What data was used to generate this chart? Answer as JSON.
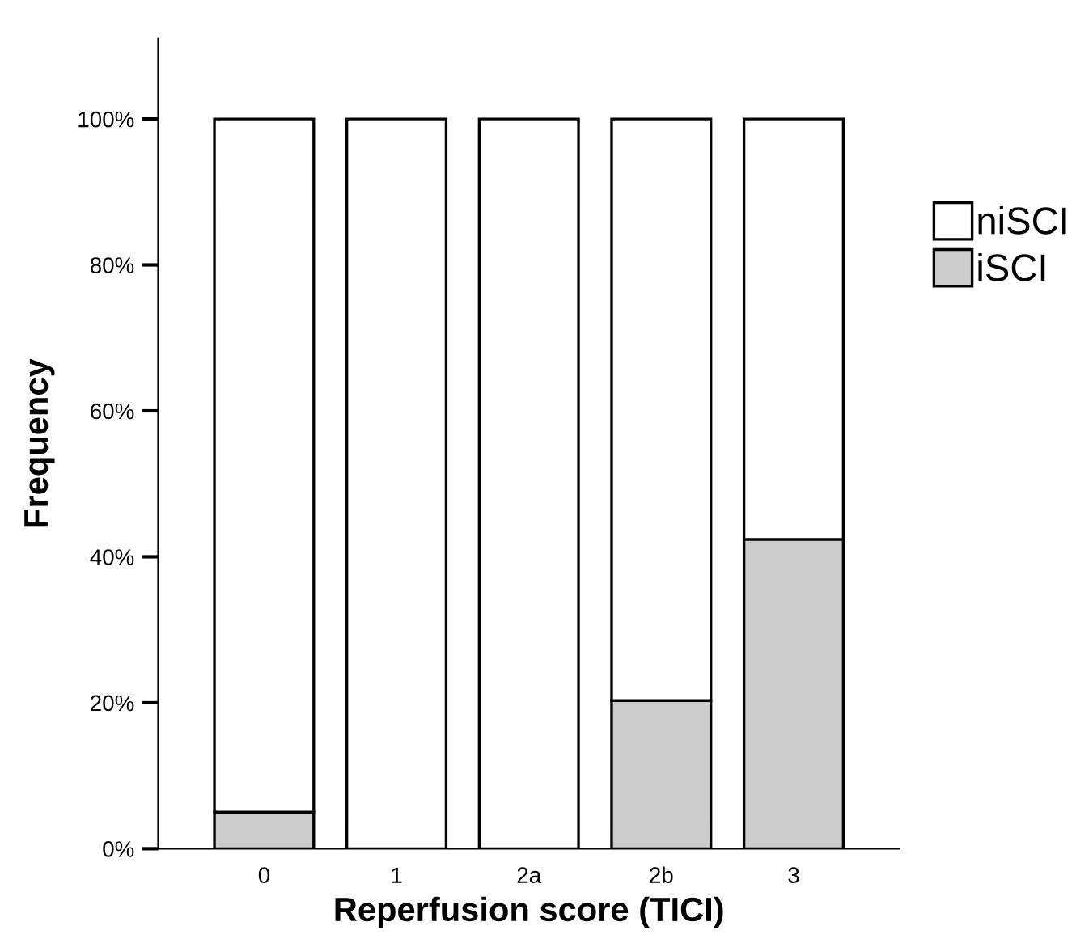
{
  "chart_data": {
    "type": "bar",
    "stacked": true,
    "xlabel": "Reperfusion score (TICI)",
    "ylabel": "Frequency",
    "categories": [
      "0",
      "1",
      "2a",
      "2b",
      "3"
    ],
    "series": [
      {
        "name": "iSCI",
        "color": "#cccccc",
        "values": [
          5.0,
          0,
          0,
          20.3,
          42.4
        ]
      },
      {
        "name": "niSCI",
        "color": "#ffffff",
        "values": [
          95.0,
          100,
          100,
          79.7,
          57.6
        ]
      }
    ],
    "ylim": [
      0,
      111
    ],
    "yticks": [
      {
        "value": 0,
        "label": "0%"
      },
      {
        "value": 20,
        "label": "20%"
      },
      {
        "value": 40,
        "label": "40%"
      },
      {
        "value": 60,
        "label": "60%"
      },
      {
        "value": 80,
        "label": "80%"
      },
      {
        "value": 100,
        "label": "100%"
      }
    ],
    "grid": false,
    "legend": "top right"
  }
}
